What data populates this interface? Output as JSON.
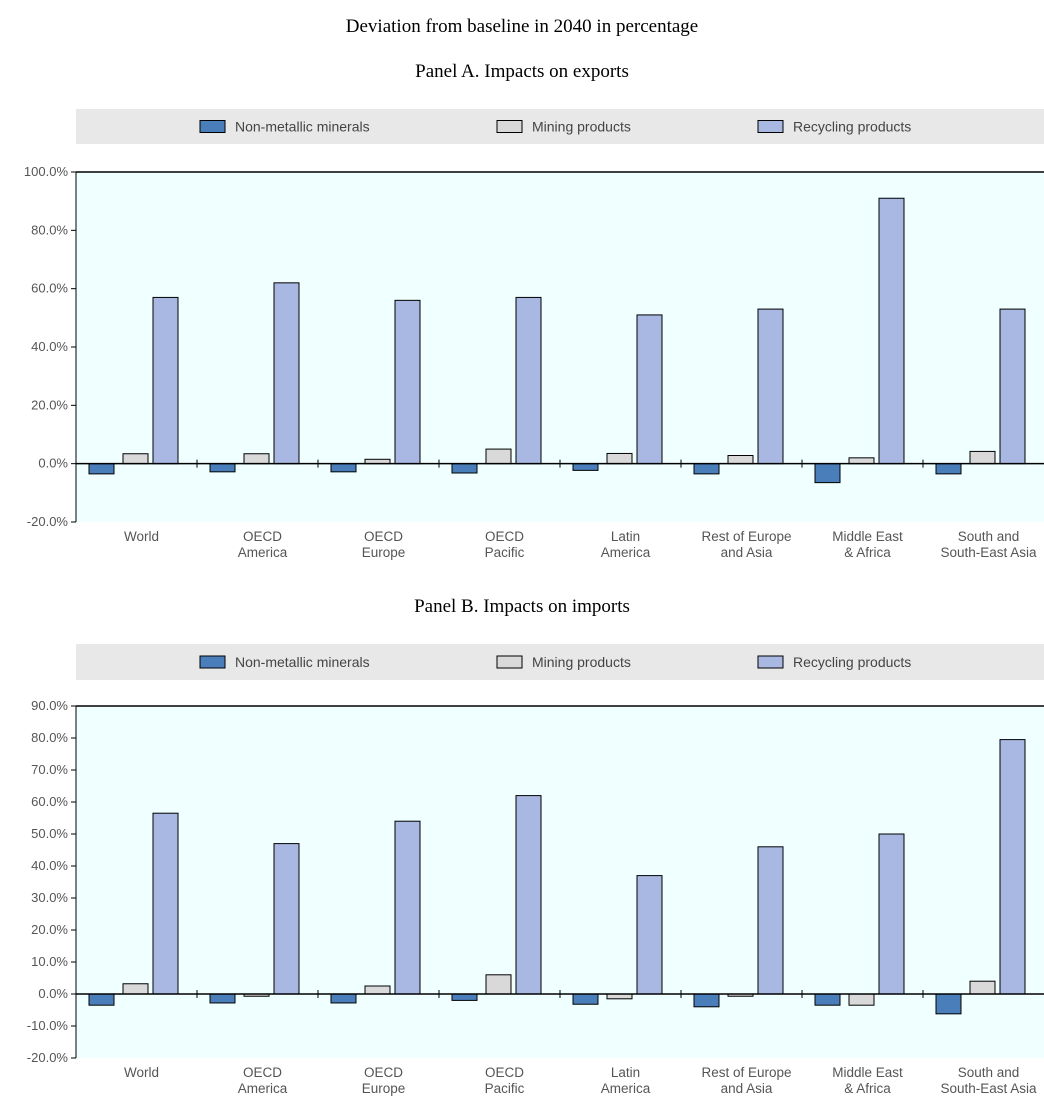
{
  "title": "Deviation from baseline in 2040 in percentage",
  "colors": {
    "non_metallic": "#4a7ebb",
    "mining": "#d9d9d9",
    "recycling": "#a9b8e3",
    "plot_bg": "#f0ffff",
    "legend_bg": "#e8e8e8"
  },
  "chart_data": [
    {
      "type": "bar",
      "title": "Panel A. Impacts on exports",
      "categories": [
        "World",
        "OECD\nAmerica",
        "OECD\nEurope",
        "OECD\nPacific",
        "Latin\nAmerica",
        "Rest of Europe\nand Asia",
        "Middle East\n& Africa",
        "South and\nSouth-East Asia"
      ],
      "series": [
        {
          "name": "Non-metallic minerals",
          "values": [
            -3.5,
            -2.8,
            -2.8,
            -3.2,
            -2.3,
            -3.5,
            -6.5,
            -3.5
          ]
        },
        {
          "name": "Mining products",
          "values": [
            3.4,
            3.4,
            1.5,
            5.0,
            3.5,
            2.8,
            2.0,
            4.2
          ]
        },
        {
          "name": "Recycling products",
          "values": [
            57,
            62,
            56,
            57,
            51,
            53,
            91,
            53
          ]
        }
      ],
      "ylim": [
        -20,
        100
      ],
      "yticks": [
        100,
        80,
        60,
        40,
        20,
        0,
        -20
      ],
      "ytick_labels": [
        "100.0%",
        "80.0%",
        "60.0%",
        "40.0%",
        "20.0%",
        "0.0%",
        "-20.0%"
      ],
      "legend_position": "top",
      "grid": false
    },
    {
      "type": "bar",
      "title": "Panel B. Impacts on imports",
      "categories": [
        "World",
        "OECD\nAmerica",
        "OECD\nEurope",
        "OECD\nPacific",
        "Latin\nAmerica",
        "Rest of Europe\nand Asia",
        "Middle East\n& Africa",
        "South and\nSouth-East Asia"
      ],
      "series": [
        {
          "name": "Non-metallic minerals",
          "values": [
            -3.5,
            -2.8,
            -2.8,
            -2.0,
            -3.2,
            -4.0,
            -3.5,
            -6.2
          ]
        },
        {
          "name": "Mining products",
          "values": [
            3.2,
            -0.7,
            2.5,
            6.0,
            -1.5,
            -0.7,
            -3.5,
            4.0
          ]
        },
        {
          "name": "Recycling products",
          "values": [
            56.5,
            47,
            54,
            62,
            37,
            46,
            50,
            79.5
          ]
        }
      ],
      "ylim": [
        -20,
        90
      ],
      "yticks": [
        90,
        80,
        70,
        60,
        50,
        40,
        30,
        20,
        10,
        0,
        -10,
        -20
      ],
      "ytick_labels": [
        "90.0%",
        "80.0%",
        "70.0%",
        "60.0%",
        "50.0%",
        "40.0%",
        "30.0%",
        "20.0%",
        "10.0%",
        "0.0%",
        "-10.0%",
        "-20.0%"
      ],
      "legend_position": "top",
      "grid": false
    }
  ]
}
